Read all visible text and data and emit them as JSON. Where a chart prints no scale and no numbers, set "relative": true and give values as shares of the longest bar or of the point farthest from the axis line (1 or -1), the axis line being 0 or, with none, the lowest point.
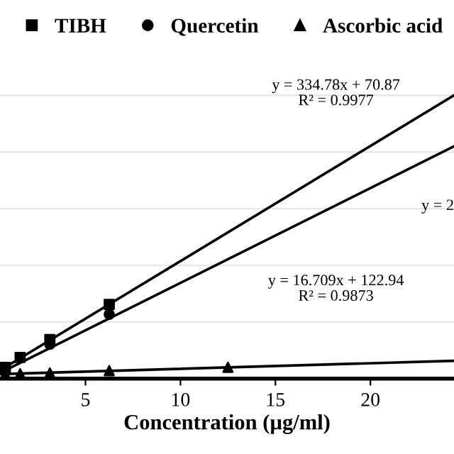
{
  "chart_data": {
    "type": "scatter",
    "relative": true,
    "xlabel": "Concentration (µg/ml)",
    "xlim": [
      0.5,
      24.4
    ],
    "xticks": [
      5,
      10,
      15,
      20
    ],
    "grid": "y",
    "legend": "top",
    "tick_labels": "x",
    "series": [
      {
        "name": "TIBH",
        "color": "#000000",
        "marker": "square",
        "x": [
          0.78,
          1.56,
          3.125,
          6.25
        ],
        "values": [
          0.04,
          0.075,
          0.138,
          0.262
        ]
      },
      {
        "name": "Quercetin",
        "color": "#000000",
        "marker": "circle",
        "x": [
          3.125,
          6.25
        ],
        "values": [
          0.121,
          0.227
        ]
      },
      {
        "name": "Ascorbic acid",
        "color": "#000000",
        "marker": "triangle",
        "x": [
          0.78,
          1.56,
          3.125,
          6.25,
          12.5
        ],
        "values": [
          0.016,
          0.017,
          0.02,
          0.028,
          0.04
        ]
      },
      {
        "type": "line",
        "color": "#000000",
        "x": [
          0.5,
          24.4
        ],
        "values": [
          0.029,
          1
        ]
      },
      {
        "type": "line",
        "color": "#000000",
        "x": [
          0.5,
          24.4
        ],
        "values": [
          0.02,
          0.82
        ]
      },
      {
        "type": "line",
        "color": "#000000",
        "x": [
          0.5,
          24.4
        ],
        "values": [
          0.016,
          0.063
        ]
      }
    ],
    "annotations": [
      "y = 334.78x + 70.87\nR² = 0.9977",
      "y = 2",
      "y = 16.709x + 122.94\nR² = 0.9873"
    ]
  }
}
